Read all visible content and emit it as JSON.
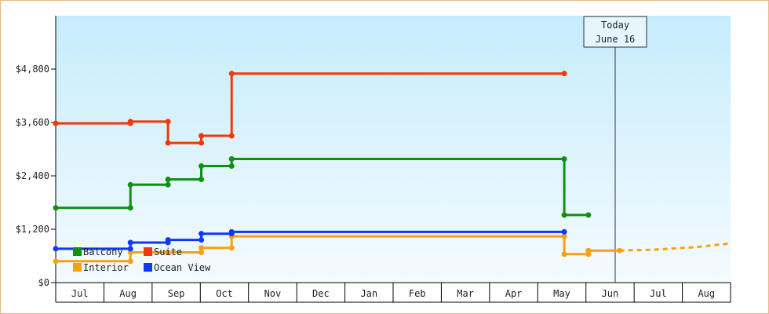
{
  "chart_data": {
    "type": "line",
    "title": "",
    "xlabel": "",
    "ylabel": "",
    "ylim": [
      0,
      6000
    ],
    "y_ticks": [
      {
        "value": 0,
        "label": "$0"
      },
      {
        "value": 1200,
        "label": "$1,200"
      },
      {
        "value": 2400,
        "label": "$2,400"
      },
      {
        "value": 3600,
        "label": "$3,600"
      },
      {
        "value": 4800,
        "label": "$4,800"
      }
    ],
    "x_ticks": [
      {
        "index": 1,
        "label": "Jul"
      },
      {
        "index": 2,
        "label": "Aug"
      },
      {
        "index": 3,
        "label": "Sep"
      },
      {
        "index": 4,
        "label": "Oct"
      },
      {
        "index": 5,
        "label": "Nov"
      },
      {
        "index": 6,
        "label": "Dec"
      },
      {
        "index": 7,
        "label": "Jan"
      },
      {
        "index": 8,
        "label": "Feb"
      },
      {
        "index": 9,
        "label": "Mar"
      },
      {
        "index": 10,
        "label": "Apr"
      },
      {
        "index": 11,
        "label": "May"
      },
      {
        "index": 12,
        "label": "Jun"
      },
      {
        "index": 13,
        "label": "Jul"
      },
      {
        "index": 14,
        "label": "Aug"
      }
    ],
    "x_range": [
      0,
      14
    ],
    "grid": false,
    "legend_position": "bottom-left",
    "today": {
      "line1": "Today",
      "line2": "June 16",
      "x": 11.7
    },
    "series": [
      {
        "name": "Balcony",
        "color": "#109010",
        "style": "step",
        "points": [
          [
            0,
            1680
          ],
          [
            1.55,
            1680
          ],
          [
            1.55,
            2200
          ],
          [
            2.33,
            2200
          ],
          [
            2.33,
            2320
          ],
          [
            3.02,
            2320
          ],
          [
            3.02,
            2620
          ],
          [
            3.65,
            2620
          ],
          [
            3.65,
            2780
          ],
          [
            10.55,
            2780
          ],
          [
            10.55,
            1520
          ],
          [
            11.05,
            1520
          ]
        ]
      },
      {
        "name": "Suite",
        "color": "#f03808",
        "style": "step",
        "points": [
          [
            0,
            3580
          ],
          [
            1.55,
            3580
          ],
          [
            1.55,
            3620
          ],
          [
            2.33,
            3620
          ],
          [
            2.33,
            3140
          ],
          [
            3.02,
            3140
          ],
          [
            3.02,
            3300
          ],
          [
            3.65,
            3300
          ],
          [
            3.65,
            4700
          ],
          [
            10.55,
            4700
          ]
        ]
      },
      {
        "name": "Interior",
        "color": "#f8a010",
        "style": "step",
        "points": [
          [
            0,
            480
          ],
          [
            1.55,
            480
          ],
          [
            1.55,
            680
          ],
          [
            2.33,
            680
          ],
          [
            2.33,
            680
          ],
          [
            3.02,
            680
          ],
          [
            3.02,
            780
          ],
          [
            3.65,
            780
          ],
          [
            3.65,
            1040
          ],
          [
            10.55,
            1040
          ],
          [
            10.55,
            640
          ],
          [
            11.05,
            640
          ],
          [
            11.05,
            720
          ],
          [
            11.7,
            720
          ]
        ]
      },
      {
        "name": "Ocean View",
        "color": "#1038f8",
        "style": "step",
        "points": [
          [
            0,
            760
          ],
          [
            1.55,
            760
          ],
          [
            1.55,
            900
          ],
          [
            2.33,
            900
          ],
          [
            2.33,
            960
          ],
          [
            3.02,
            960
          ],
          [
            3.02,
            1100
          ],
          [
            3.65,
            1100
          ],
          [
            3.65,
            1140
          ],
          [
            10.55,
            1140
          ]
        ]
      }
    ],
    "forecast": {
      "series": "Interior",
      "points": [
        [
          11.7,
          720
        ],
        [
          12.4,
          740
        ],
        [
          13.3,
          800
        ],
        [
          14.2,
          880
        ]
      ]
    }
  }
}
